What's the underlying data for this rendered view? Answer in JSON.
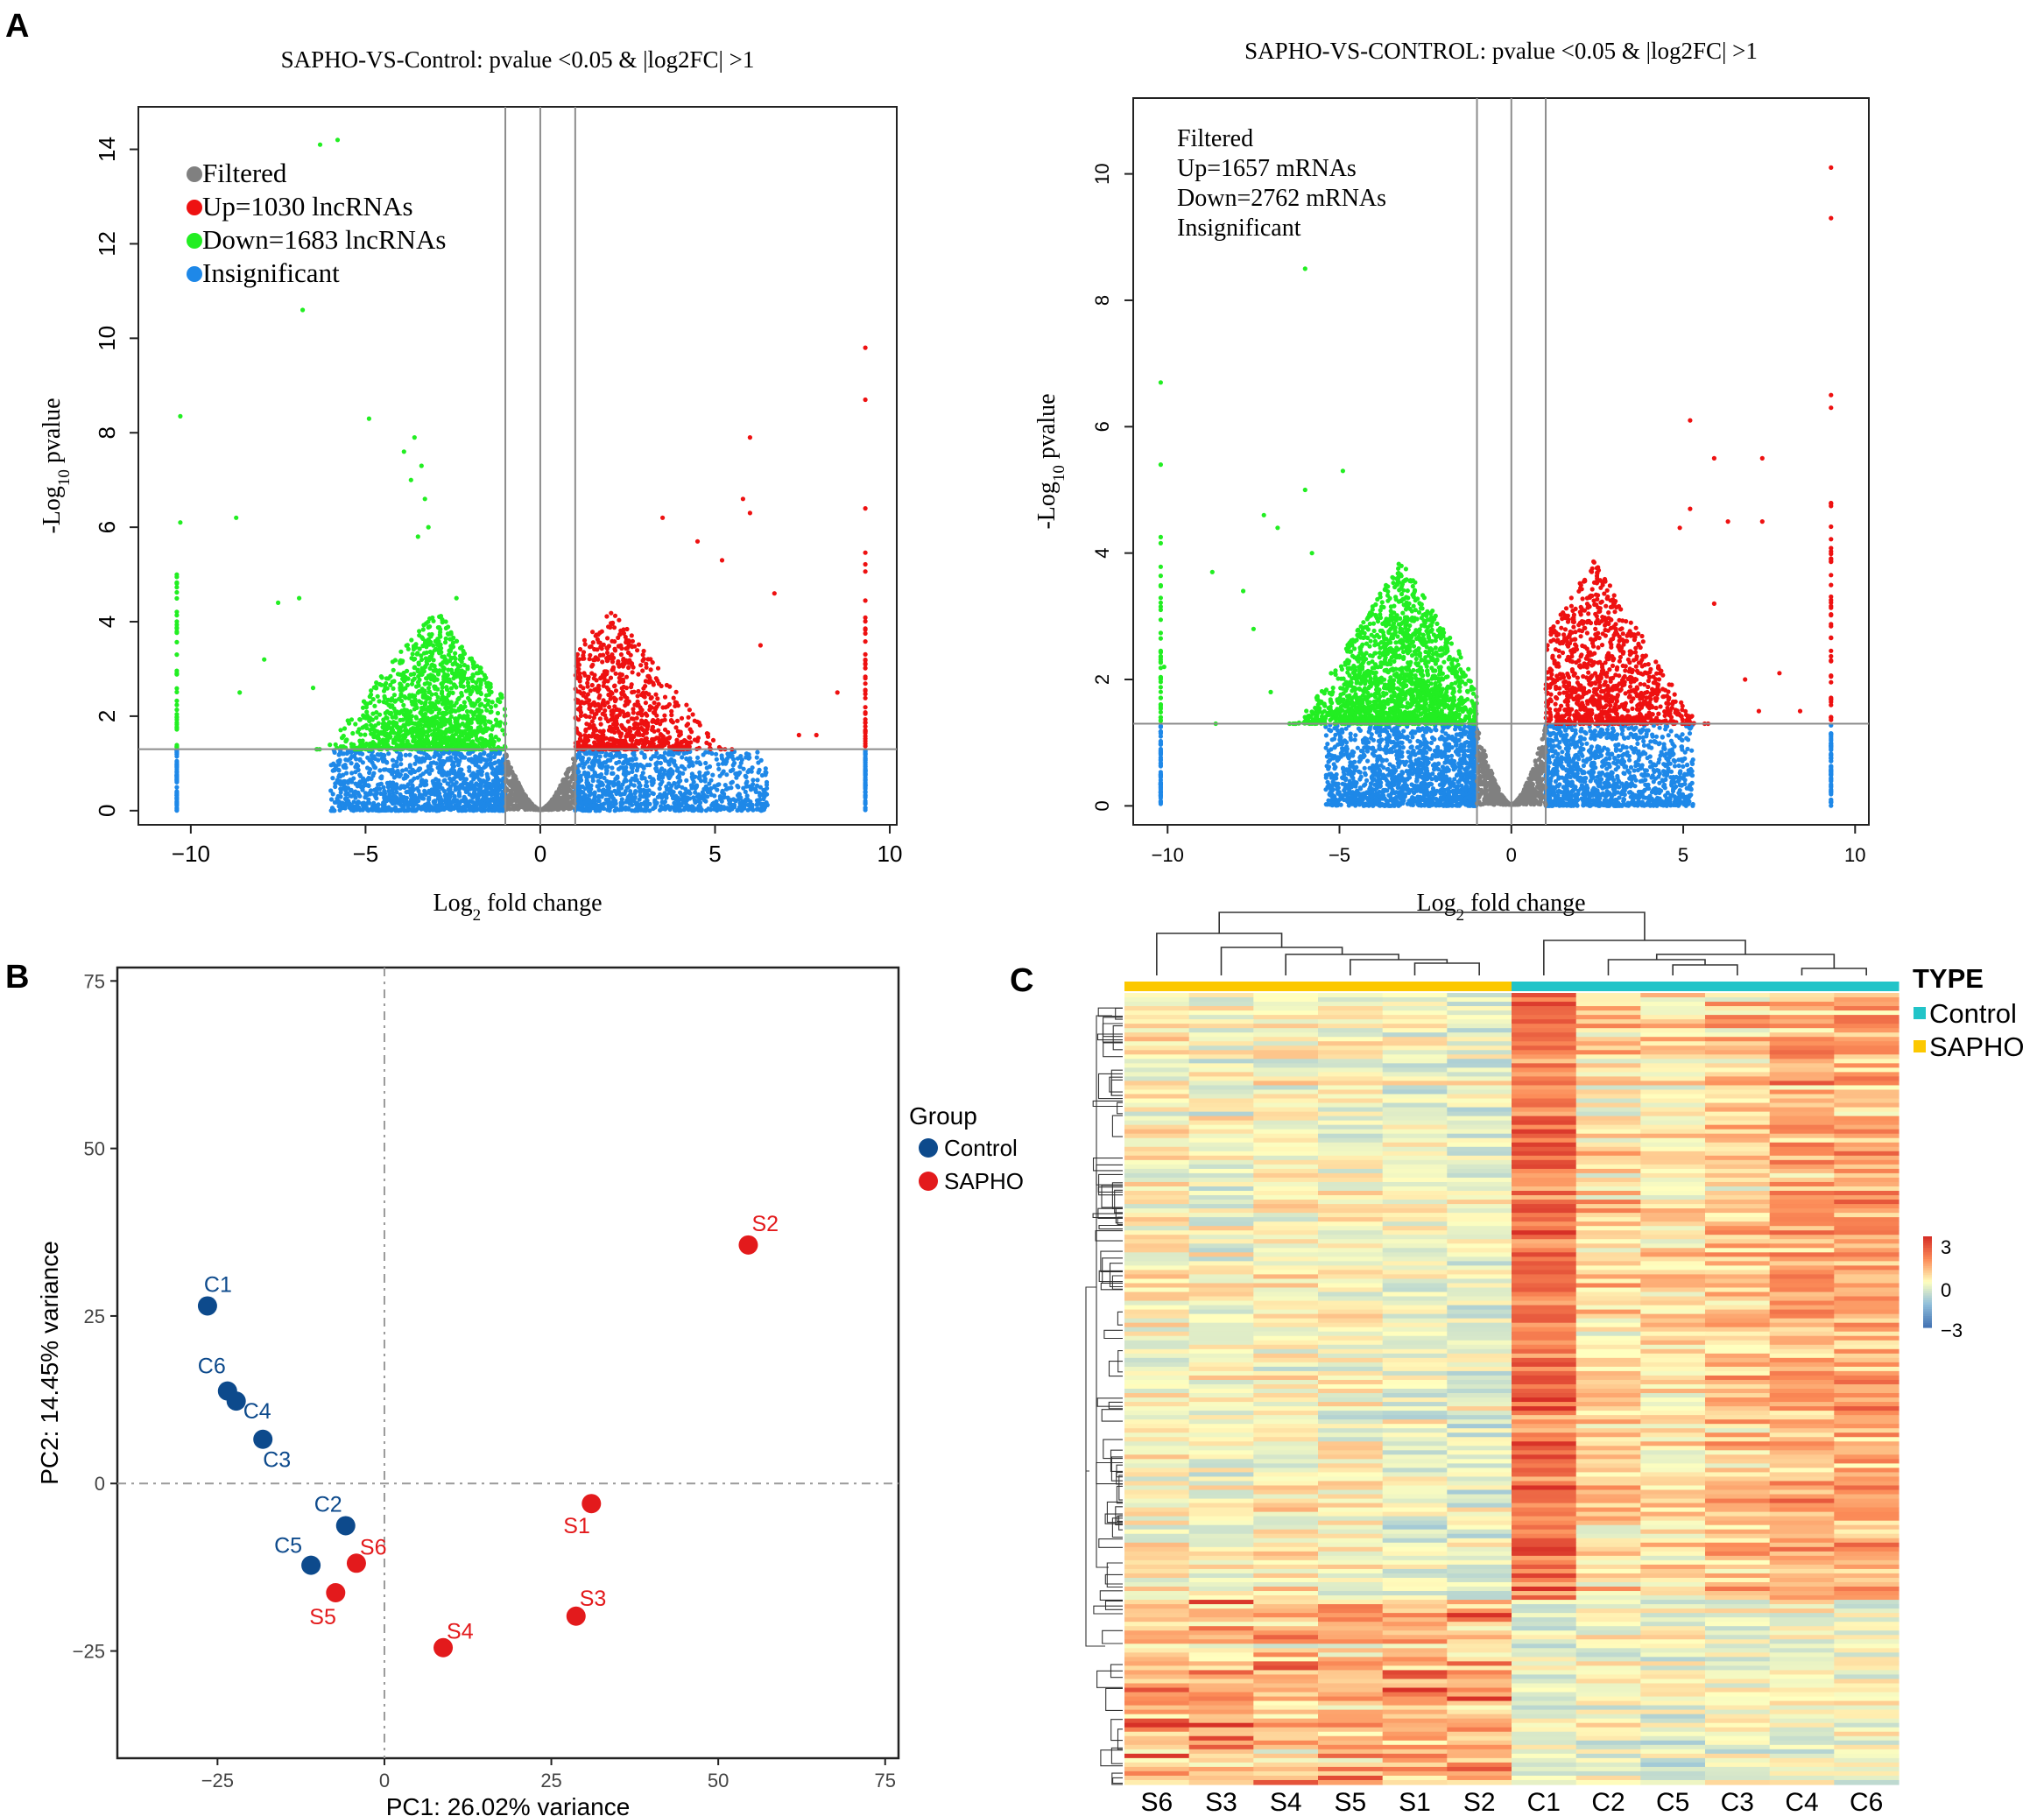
{
  "panel_labels": {
    "a": "A",
    "b": "B",
    "c": "C"
  },
  "colors": {
    "filtered": "#808080",
    "up": "#ee1111",
    "down": "#22ee22",
    "insignificant": "#1e88e8",
    "control": "#0d4a8c",
    "sapho": "#e31a1c",
    "type_control": "#22c4c8",
    "type_sapho": "#fcc800"
  },
  "chart_data": [
    {
      "id": "volcano-lnc",
      "type": "scatter",
      "title": "SAPHO-VS-Control: pvalue <0.05 & |log2FC| >1",
      "xlabel_main": "Log",
      "xlabel_sub": "2",
      "xlabel_rest": " fold change",
      "ylabel_main": "-Log",
      "ylabel_sub": "10",
      "ylabel_rest": " pvalue",
      "xlim": [
        -11.5,
        10.2
      ],
      "ylim": [
        -0.3,
        14.9
      ],
      "xticks": [
        -10,
        -5,
        0,
        5,
        10
      ],
      "xtick_labels": [
        "−10",
        "−5",
        "0",
        "5",
        "10"
      ],
      "yticks": [
        0,
        2,
        4,
        6,
        8,
        10,
        12,
        14
      ],
      "ytick_labels": [
        "0",
        "2",
        "4",
        "6",
        "8",
        "10",
        "12",
        "14"
      ],
      "vlines": [
        -1,
        0,
        1
      ],
      "hline": 1.3,
      "legend_style": "dots",
      "legend": [
        "Filtered",
        "Up=1030 lncRNAs",
        "Down=1683 lncRNAs",
        "Insignificant"
      ],
      "outliers_down": [
        [
          -5.8,
          14.2
        ],
        [
          -6.3,
          14.1
        ],
        [
          -6.8,
          10.6
        ],
        [
          -4.9,
          8.3
        ],
        [
          -10.3,
          8.35
        ],
        [
          -3.6,
          7.9
        ],
        [
          -3.9,
          7.6
        ],
        [
          -3.4,
          7.3
        ],
        [
          -3.7,
          7.0
        ],
        [
          -3.3,
          6.6
        ],
        [
          -8.7,
          6.2
        ],
        [
          -3.2,
          6.0
        ],
        [
          -3.5,
          5.8
        ],
        [
          -10.3,
          6.1
        ],
        [
          -6.9,
          4.5
        ],
        [
          -7.5,
          4.4
        ],
        [
          -2.4,
          4.5
        ],
        [
          -7.9,
          3.2
        ],
        [
          -6.5,
          2.6
        ],
        [
          -8.6,
          2.5
        ]
      ],
      "outliers_up": [
        [
          9.3,
          9.8
        ],
        [
          9.3,
          8.7
        ],
        [
          6.0,
          7.9
        ],
        [
          5.8,
          6.6
        ],
        [
          6.0,
          6.3
        ],
        [
          3.5,
          6.2
        ],
        [
          4.5,
          5.7
        ],
        [
          5.2,
          5.3
        ],
        [
          6.7,
          4.6
        ],
        [
          6.3,
          3.5
        ],
        [
          7.9,
          1.6
        ],
        [
          7.4,
          1.6
        ],
        [
          9.3,
          6.4
        ],
        [
          8.5,
          2.5
        ]
      ],
      "column_left_x": -10.4,
      "column_right_x": 9.3
    },
    {
      "id": "volcano-mrna",
      "type": "scatter",
      "title": "SAPHO-VS-CONTROL: pvalue <0.05 & |log2FC| >1",
      "xlabel_main": "Log",
      "xlabel_sub": "2",
      "xlabel_rest": " fold change",
      "ylabel_main": "-Log",
      "ylabel_sub": "10",
      "ylabel_rest": " pvalue",
      "xlim": [
        -11.0,
        10.4
      ],
      "ylim": [
        -0.3,
        11.2
      ],
      "xticks": [
        -10,
        -5,
        0,
        5,
        10
      ],
      "xtick_labels": [
        "−10",
        "−5",
        "0",
        "5",
        "10"
      ],
      "yticks": [
        0,
        2,
        4,
        6,
        8,
        10
      ],
      "ytick_labels": [
        "0",
        "2",
        "4",
        "6",
        "8",
        "10"
      ],
      "vlines": [
        -1,
        0,
        1
      ],
      "hline": 1.3,
      "legend_style": "plain",
      "legend": [
        "Filtered",
        "Up=1657 mRNAs",
        "Down=2762 mRNAs",
        "Insignificant"
      ],
      "outliers_down": [
        [
          -6.0,
          8.5
        ],
        [
          -10.2,
          6.7
        ],
        [
          -10.2,
          5.4
        ],
        [
          -6.0,
          5.0
        ],
        [
          -4.9,
          5.3
        ],
        [
          -7.2,
          4.6
        ],
        [
          -6.8,
          4.4
        ],
        [
          -5.8,
          4.0
        ],
        [
          -8.7,
          3.7
        ],
        [
          -7.8,
          3.4
        ],
        [
          -7.5,
          2.8
        ],
        [
          -10.1,
          2.2
        ],
        [
          -8.6,
          1.3
        ],
        [
          -7.0,
          1.8
        ]
      ],
      "outliers_up": [
        [
          9.3,
          10.1
        ],
        [
          9.3,
          9.3
        ],
        [
          5.2,
          6.1
        ],
        [
          5.9,
          5.5
        ],
        [
          7.3,
          5.5
        ],
        [
          9.3,
          6.5
        ],
        [
          9.3,
          6.3
        ],
        [
          7.3,
          4.5
        ],
        [
          6.3,
          4.5
        ],
        [
          5.2,
          4.7
        ],
        [
          4.9,
          4.4
        ],
        [
          5.9,
          3.2
        ],
        [
          7.8,
          2.1
        ],
        [
          8.4,
          1.5
        ],
        [
          7.2,
          1.5
        ],
        [
          6.8,
          2.0
        ]
      ],
      "column_left_x": -10.2,
      "column_right_x": 9.3
    },
    {
      "id": "pca",
      "type": "scatter",
      "xlabel": "PC1: 26.02% variance",
      "ylabel": "PC2: 14.45% variance",
      "xlim": [
        -40,
        77
      ],
      "ylim": [
        -41,
        77
      ],
      "xticks": [
        -25,
        0,
        25,
        50,
        75
      ],
      "xtick_labels": [
        "−25",
        "0",
        "25",
        "50",
        "75"
      ],
      "yticks": [
        -25,
        0,
        25,
        50,
        75
      ],
      "ytick_labels": [
        "−25",
        "0",
        "25",
        "50",
        "75"
      ],
      "legend_title": "Group",
      "series": [
        {
          "name": "Control",
          "points": [
            {
              "label": "C1",
              "x": -26.5,
              "y": 26.5
            },
            {
              "label": "C6",
              "x": -23.5,
              "y": 13.8
            },
            {
              "label": "C4",
              "x": -22.2,
              "y": 12.3
            },
            {
              "label": "C3",
              "x": -18.2,
              "y": 6.6
            },
            {
              "label": "C2",
              "x": -5.8,
              "y": -6.3
            },
            {
              "label": "C5",
              "x": -11.0,
              "y": -12.2
            }
          ]
        },
        {
          "name": "SAPHO",
          "points": [
            {
              "label": "S2",
              "x": 54.5,
              "y": 35.6
            },
            {
              "label": "S1",
              "x": 31.0,
              "y": -3.0
            },
            {
              "label": "S6",
              "x": -4.2,
              "y": -11.9
            },
            {
              "label": "S5",
              "x": -7.3,
              "y": -16.3
            },
            {
              "label": "S3",
              "x": 28.7,
              "y": -19.8
            },
            {
              "label": "S4",
              "x": 8.8,
              "y": -24.5
            }
          ]
        }
      ]
    },
    {
      "id": "heatmap",
      "type": "heatmap",
      "columns": [
        "S6",
        "S3",
        "S4",
        "S5",
        "S1",
        "S2",
        "C1",
        "C2",
        "C5",
        "C3",
        "C4",
        "C6"
      ],
      "groups": [
        "SAPHO",
        "SAPHO",
        "SAPHO",
        "SAPHO",
        "SAPHO",
        "SAPHO",
        "Control",
        "Control",
        "Control",
        "Control",
        "Control",
        "Control"
      ],
      "legend_title": "TYPE",
      "legend": [
        "Control",
        "SAPHO"
      ],
      "scale_labels": [
        "3",
        "0",
        "−3"
      ],
      "value_range": [
        -3,
        3
      ],
      "row_count": 180,
      "upper_block_rows": 138,
      "upper_block_means": [
        0.1,
        -0.1,
        0.1,
        0.0,
        -0.2,
        -0.3,
        1.9,
        0.6,
        0.4,
        0.8,
        1.1,
        1.2
      ],
      "lower_block_means": [
        0.8,
        0.8,
        0.6,
        0.6,
        0.9,
        0.9,
        -0.4,
        -0.2,
        -0.3,
        -0.2,
        -0.2,
        -0.2
      ]
    }
  ]
}
